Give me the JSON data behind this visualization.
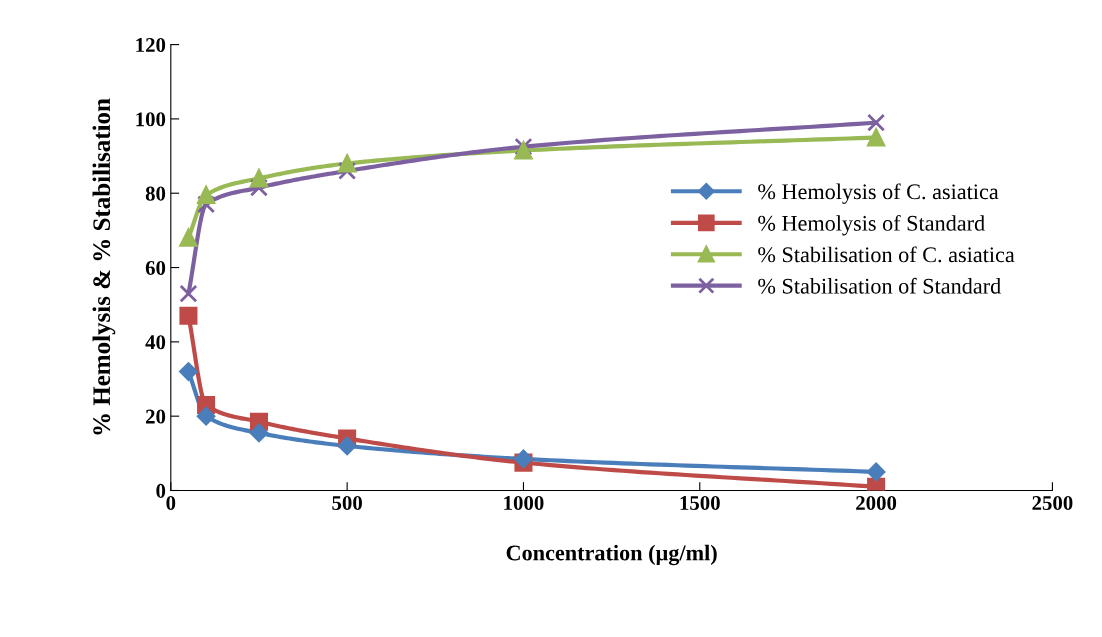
{
  "chart_data": {
    "type": "line",
    "xlabel": "Concentration (µg/ml)",
    "ylabel": "% Hemolysis & % Stabilisation",
    "x": [
      50,
      100,
      250,
      500,
      1000,
      2000
    ],
    "series": [
      {
        "name": "% Hemolysis of C. asiatica",
        "color": "#4a7ebb",
        "marker": "diamond",
        "values": [
          32,
          20,
          15.5,
          12,
          8.5,
          5
        ]
      },
      {
        "name": "% Hemolysis of Standard",
        "color": "#be4b48",
        "marker": "square",
        "values": [
          47,
          23,
          18.5,
          14,
          7.5,
          1
        ]
      },
      {
        "name": "% Stabilisation of C. asiatica",
        "color": "#98b954",
        "marker": "triangle",
        "values": [
          68,
          79.5,
          84,
          88,
          91.5,
          95
        ]
      },
      {
        "name": "% Stabilisation of Standard",
        "color": "#7d60a0",
        "marker": "cross",
        "values": [
          53,
          77,
          81.5,
          86,
          92.5,
          99
        ]
      }
    ],
    "xlim": [
      0,
      2500
    ],
    "xticks": [
      0,
      500,
      1000,
      1500,
      2000,
      2500
    ],
    "ylim": [
      0,
      120
    ],
    "yticks": [
      0,
      20,
      40,
      60,
      80,
      100,
      120
    ],
    "grid": false,
    "legend": "right",
    "line_style": "solid"
  }
}
